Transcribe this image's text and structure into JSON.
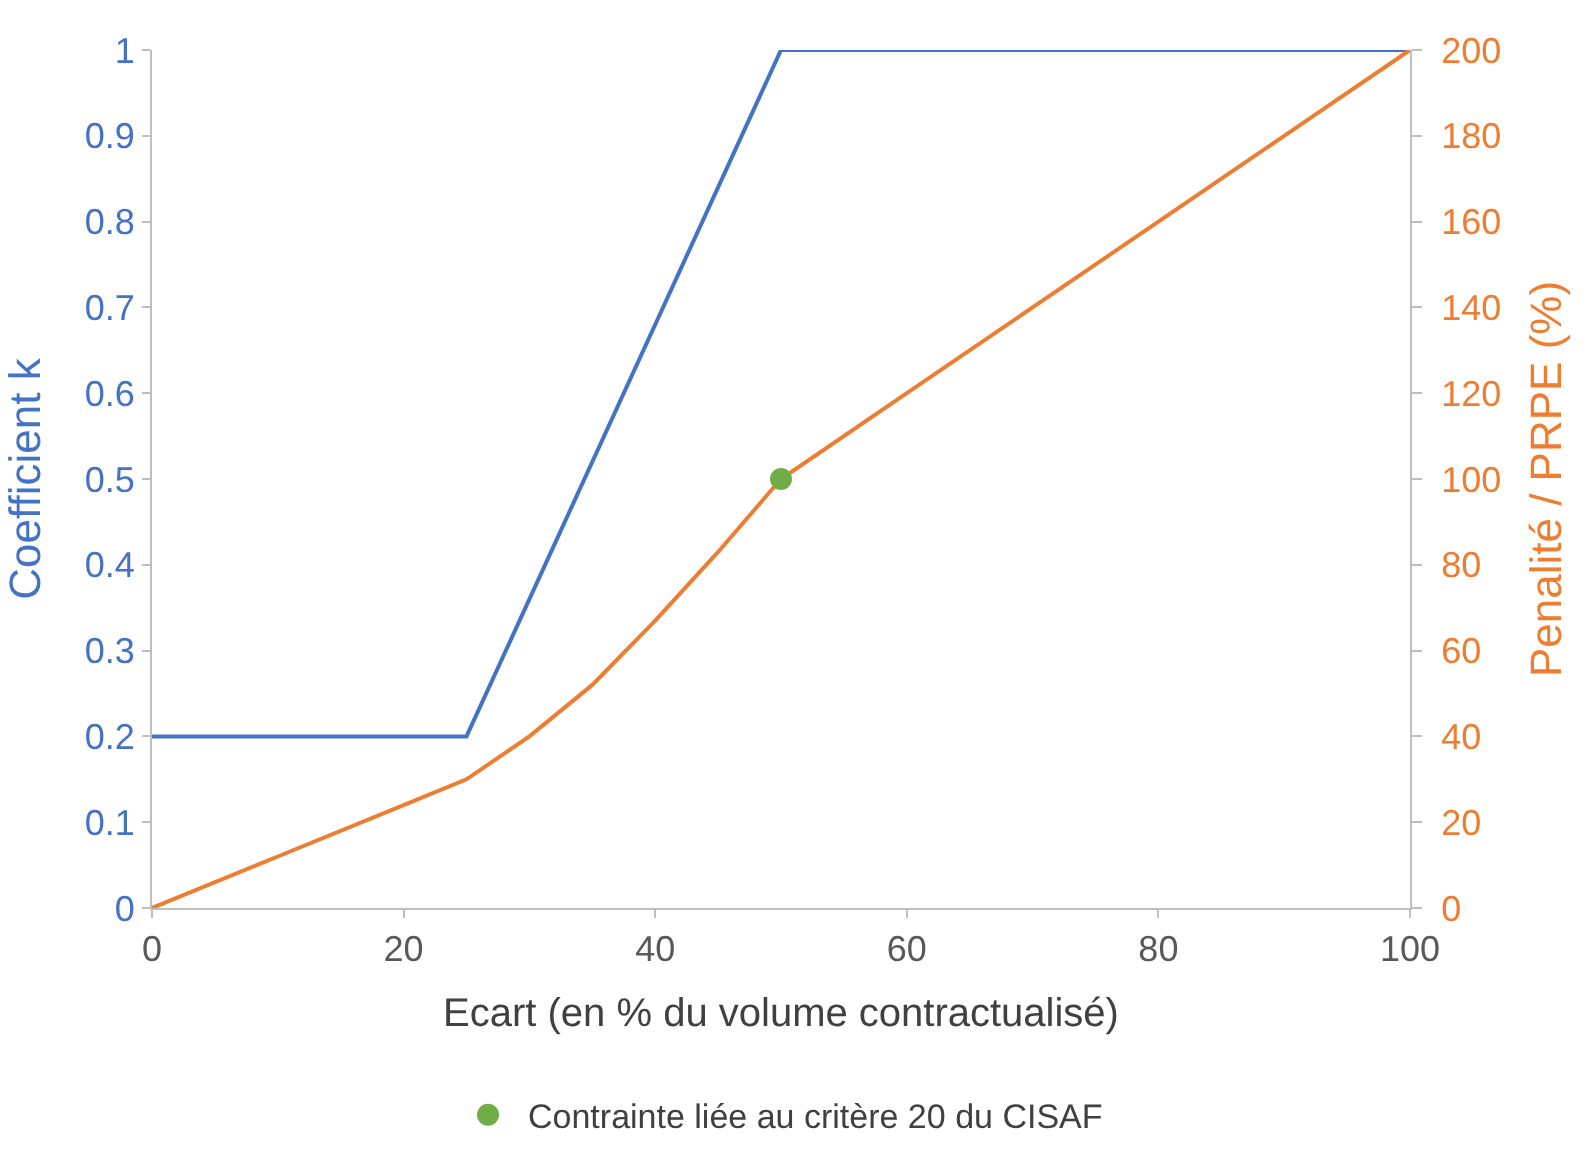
{
  "chart_data": {
    "type": "line",
    "xlabel": "Ecart (en % du volume contractualisé)",
    "ylabel": "Coefficient k",
    "y2label": "Penalité / PRPE (%)",
    "series": [
      {
        "color": "#4472c4",
        "x": [
          0,
          25,
          50,
          100
        ],
        "values": [
          0.2,
          0.2,
          1,
          1
        ]
      },
      {
        "color": "#ed7d31",
        "axis": "y2",
        "x": [
          0,
          10,
          20,
          25,
          30,
          35,
          40,
          45,
          50,
          60,
          70,
          80,
          90,
          100
        ],
        "values": [
          0,
          12,
          24,
          30,
          40,
          52,
          67,
          83,
          100,
          120,
          140,
          160,
          180,
          200
        ]
      },
      {
        "type": "scatter",
        "name": "Contrainte liée au critère 20 du CISAF",
        "color": "#70ad47",
        "axis": "y2",
        "x": [
          50
        ],
        "values": [
          100
        ]
      }
    ],
    "xlim": [
      0,
      100
    ],
    "xticks": [
      0,
      20,
      40,
      60,
      80,
      100
    ],
    "ylim": [
      0,
      1
    ],
    "yticks": [
      0,
      0.1,
      0.2,
      0.3,
      0.4,
      0.5,
      0.6,
      0.7,
      0.8,
      0.9,
      1
    ],
    "y2lim": [
      0,
      200
    ],
    "y2ticks": [
      0,
      20,
      40,
      60,
      80,
      100,
      120,
      140,
      160,
      180,
      200
    ],
    "legend": "bottom",
    "line_style": "solid"
  }
}
